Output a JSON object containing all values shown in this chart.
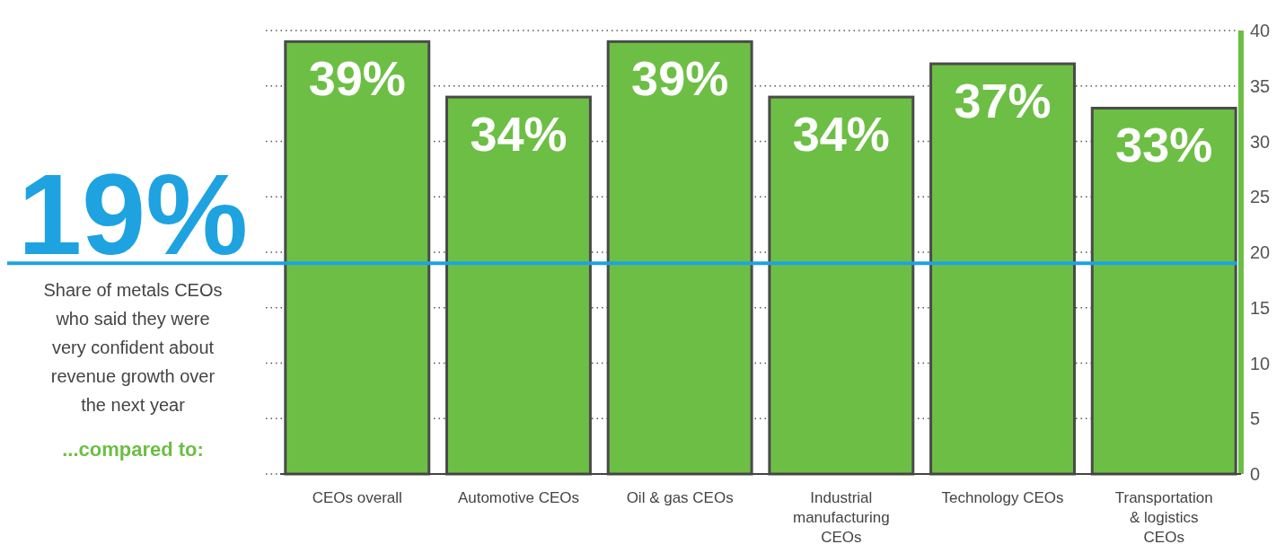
{
  "chart_data": {
    "type": "bar",
    "categories": [
      "CEOs overall",
      "Automotive CEOs",
      "Oil & gas CEOs",
      "Industrial manufacturing CEOs",
      "Technology CEOs",
      "Transportation & logistics CEOs"
    ],
    "values": [
      39,
      34,
      39,
      34,
      37,
      33
    ],
    "color": "#6cbf44",
    "value_labels": [
      "39%",
      "34%",
      "39%",
      "34%",
      "37%",
      "33%"
    ],
    "ylim": [
      0,
      40
    ],
    "yticks": [
      0,
      5,
      10,
      15,
      20,
      25,
      30,
      35,
      40
    ],
    "grid": "y",
    "ref_lines": [
      {
        "axis": "y",
        "value": 19,
        "label": "19%",
        "color": "#1ea3e0"
      }
    ],
    "annotations": [
      "Share of metals CEOs who said they were very confident about revenue growth over the next year",
      "...compared to:"
    ]
  }
}
